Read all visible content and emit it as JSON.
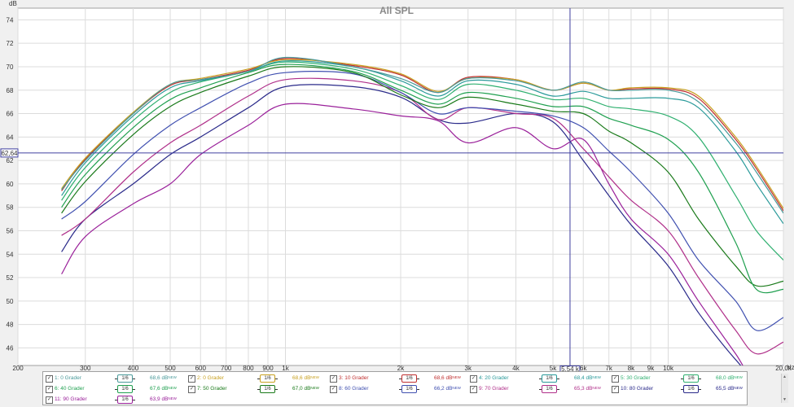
{
  "chart_data": {
    "type": "line",
    "title": "All SPL",
    "ylabel": "dB",
    "xunit": "Hz",
    "xscale": "log",
    "xlim": [
      200,
      20000
    ],
    "ylim": [
      44.5,
      75
    ],
    "grid": true,
    "y_ticks": [
      46,
      48,
      50,
      52,
      54,
      56,
      58,
      60,
      62,
      64,
      66,
      68,
      70,
      72,
      74
    ],
    "x_ticks": [
      {
        "v": 200,
        "label": "200"
      },
      {
        "v": 300,
        "label": "300"
      },
      {
        "v": 400,
        "label": "400"
      },
      {
        "v": 500,
        "label": "500"
      },
      {
        "v": 600,
        "label": "600"
      },
      {
        "v": 700,
        "label": "700"
      },
      {
        "v": 800,
        "label": "800"
      },
      {
        "v": 900,
        "label": "900"
      },
      {
        "v": 1000,
        "label": "1k"
      },
      {
        "v": 2000,
        "label": "2k"
      },
      {
        "v": 3000,
        "label": "3k"
      },
      {
        "v": 4000,
        "label": "4k"
      },
      {
        "v": 5000,
        "label": "5k"
      },
      {
        "v": 6000,
        "label": "6k"
      },
      {
        "v": 7000,
        "label": "7k"
      },
      {
        "v": 8000,
        "label": "8k"
      },
      {
        "v": 9000,
        "label": "9k"
      },
      {
        "v": 10000,
        "label": "10k"
      },
      {
        "v": 20000,
        "label": "20,0k"
      }
    ],
    "cursor": {
      "x": 5540,
      "y": 62.64,
      "x_label": "5,54 k",
      "y_label": "62,64"
    },
    "x": [
      260,
      300,
      400,
      500,
      600,
      800,
      1000,
      1500,
      2000,
      2500,
      3000,
      4000,
      5000,
      6000,
      7000,
      8000,
      10000,
      12000,
      15000,
      17000,
      20000
    ],
    "series": [
      {
        "name": "1: 0 Grader",
        "color": "#4a9a9a",
        "smoothing": "1/6",
        "level": "68,6 dB",
        "values": [
          59.5,
          62.0,
          66.0,
          68.5,
          68.9,
          69.6,
          70.8,
          70.0,
          69.0,
          67.8,
          69.0,
          68.8,
          68.0,
          68.7,
          68.0,
          68.0,
          68.0,
          67.0,
          63.5,
          61.0,
          57.5
        ]
      },
      {
        "name": "2: 0 Grader",
        "color": "#c8a020",
        "smoothing": "1/6",
        "level": "68,6 dB",
        "values": [
          59.6,
          62.2,
          66.1,
          68.5,
          69.0,
          69.8,
          70.6,
          70.2,
          69.4,
          67.9,
          69.0,
          68.9,
          68.0,
          68.6,
          68.0,
          68.2,
          68.2,
          67.5,
          64.0,
          61.5,
          57.9
        ]
      },
      {
        "name": "3: 10 Grader",
        "color": "#c03030",
        "smoothing": "1/6",
        "level": "68,6 dB",
        "values": [
          59.4,
          62.1,
          66.0,
          68.4,
          68.9,
          69.7,
          70.7,
          70.1,
          69.3,
          67.8,
          69.1,
          68.9,
          68.0,
          68.6,
          68.0,
          68.1,
          68.1,
          67.3,
          63.8,
          61.3,
          57.7
        ]
      },
      {
        "name": "4: 20 Grader",
        "color": "#2a9a9a",
        "smoothing": "1/6",
        "level": "68,4 dB",
        "values": [
          59.0,
          61.8,
          65.8,
          68.2,
          68.8,
          69.6,
          70.5,
          70.0,
          68.8,
          67.5,
          68.8,
          68.5,
          67.5,
          67.9,
          67.3,
          67.3,
          67.3,
          66.5,
          62.8,
          60.0,
          56.6
        ]
      },
      {
        "name": "5: 30 Grader",
        "color": "#30b070",
        "smoothing": "1/6",
        "level": "68,0 dB",
        "values": [
          58.6,
          61.4,
          65.4,
          67.8,
          68.7,
          69.6,
          70.4,
          69.8,
          68.4,
          67.2,
          68.5,
          68.0,
          67.2,
          67.3,
          66.6,
          66.4,
          65.8,
          64.0,
          59.0,
          56.0,
          53.5
        ]
      },
      {
        "name": "6: 40 Grader",
        "color": "#20a050",
        "smoothing": "1/6",
        "level": "67,6 dB",
        "values": [
          58.0,
          60.8,
          64.8,
          67.2,
          68.2,
          69.5,
          70.2,
          69.6,
          68.0,
          66.8,
          67.8,
          67.3,
          66.6,
          66.6,
          65.6,
          65.0,
          63.8,
          61.0,
          55.0,
          51.0,
          51.0
        ]
      },
      {
        "name": "7: 50 Grader",
        "color": "#1a7a1a",
        "smoothing": "1/6",
        "level": "67,0 dB",
        "values": [
          57.5,
          60.2,
          64.2,
          66.6,
          67.8,
          69.2,
          70.0,
          69.5,
          67.6,
          66.5,
          67.4,
          66.8,
          66.2,
          66.0,
          64.5,
          63.5,
          61.0,
          57.0,
          53.0,
          51.3,
          51.7
        ]
      },
      {
        "name": "8: 60 Grader",
        "color": "#4050b0",
        "smoothing": "1/6",
        "level": "66,2 dB",
        "values": [
          57.0,
          58.5,
          62.5,
          65.0,
          66.5,
          68.6,
          69.5,
          69.4,
          67.8,
          66.0,
          66.5,
          66.2,
          65.8,
          64.8,
          62.8,
          61.0,
          57.5,
          53.5,
          50.0,
          47.5,
          48.6
        ]
      },
      {
        "name": "9: 70 Grader",
        "color": "#b0308a",
        "smoothing": "1/6",
        "level": "65,3 dB",
        "values": [
          55.6,
          57.0,
          61.0,
          63.5,
          65.0,
          67.5,
          68.9,
          68.8,
          67.8,
          65.5,
          66.5,
          66.0,
          65.6,
          63.0,
          60.6,
          58.6,
          56.0,
          52.0,
          47.5,
          45.5,
          46.5
        ]
      },
      {
        "name": "10: 80 Grader",
        "color": "#2a2a8a",
        "smoothing": "1/6",
        "level": "65,5 dB",
        "values": [
          54.2,
          57.0,
          60.0,
          62.5,
          64.0,
          66.5,
          68.3,
          68.3,
          67.4,
          65.5,
          65.2,
          66.0,
          65.3,
          62.0,
          59.0,
          56.5,
          53.0,
          49.0,
          45.0,
          43.5,
          44.5
        ]
      },
      {
        "name": "11: 90 Grader",
        "color": "#9a209a",
        "smoothing": "1/6",
        "level": "63,9 dB",
        "values": [
          52.3,
          55.5,
          58.3,
          60.0,
          62.5,
          65.0,
          66.8,
          66.4,
          65.8,
          65.4,
          63.5,
          64.8,
          63.0,
          63.8,
          60.0,
          57.0,
          54.0,
          50.0,
          45.5,
          43.0,
          44.0
        ]
      }
    ]
  }
}
